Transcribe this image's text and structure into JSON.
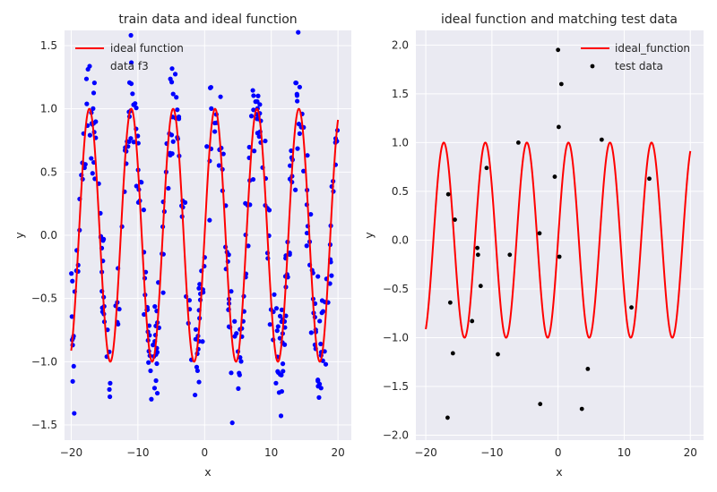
{
  "chart_data": [
    {
      "type": "scatter",
      "title": "train data and ideal function",
      "xlabel": "x",
      "ylabel": "y",
      "xlim": [
        -21,
        22
      ],
      "ylim": [
        -1.62,
        1.62
      ],
      "xticks": [
        -20,
        -10,
        0,
        10,
        20
      ],
      "xtick_labels": [
        "−20",
        "−10",
        "0",
        "10",
        "20"
      ],
      "yticks": [
        -1.5,
        -1.0,
        -0.5,
        0.0,
        0.5,
        1.0,
        1.5
      ],
      "ytick_labels": [
        "−1.5",
        "−1.0",
        "−0.5",
        "0.0",
        "0.5",
        "1.0",
        "1.5"
      ],
      "grid": true,
      "legend": "upper-left",
      "series": [
        {
          "name": "ideal function",
          "kind": "line",
          "color": "#ff0000",
          "function": "sin(x)",
          "x_range": [
            -20,
            20
          ]
        },
        {
          "name": "data f3",
          "kind": "points",
          "color": "#0000ff",
          "function": "sin(x) with noise",
          "x_range": [
            -20,
            20
          ],
          "count": 400
        }
      ]
    },
    {
      "type": "scatter",
      "title": "ideal function and matching test data",
      "xlabel": "x",
      "ylabel": "y",
      "xlim": [
        -21.5,
        22
      ],
      "ylim": [
        -2.05,
        2.15
      ],
      "xticks": [
        -20,
        -10,
        0,
        10,
        20
      ],
      "xtick_labels": [
        "−20",
        "−10",
        "0",
        "10",
        "20"
      ],
      "yticks": [
        -2.0,
        -1.5,
        -1.0,
        -0.5,
        0.0,
        0.5,
        1.0,
        1.5,
        2.0
      ],
      "ytick_labels": [
        "−2.0",
        "−1.5",
        "−1.0",
        "−0.5",
        "0.0",
        "0.5",
        "1.0",
        "1.5",
        "2.0"
      ],
      "grid": true,
      "legend": "upper-right",
      "series": [
        {
          "name": "ideal_function",
          "kind": "line",
          "color": "#ff0000",
          "function": "sin(x)",
          "x_range": [
            -20,
            20
          ]
        },
        {
          "name": "test data",
          "kind": "points",
          "color": "#000000",
          "x": [
            -16.7,
            -16.6,
            -16.3,
            -15.9,
            -15.6,
            -13,
            -12.2,
            -12.1,
            -11.7,
            -10.8,
            -9.1,
            -7.3,
            -6,
            -2.8,
            -2.7,
            -0.5,
            0,
            0.1,
            0.2,
            0.5,
            3.6,
            4.5,
            6.6,
            11.1,
            13.8
          ],
          "y": [
            -1.82,
            0.47,
            -0.64,
            -1.16,
            0.21,
            -0.83,
            -0.08,
            -0.15,
            -0.47,
            0.74,
            -1.17,
            -0.15,
            1.0,
            0.07,
            -1.68,
            0.65,
            1.95,
            1.16,
            -0.17,
            1.6,
            -1.73,
            -1.32,
            1.03,
            -0.69,
            0.63
          ]
        }
      ]
    }
  ]
}
